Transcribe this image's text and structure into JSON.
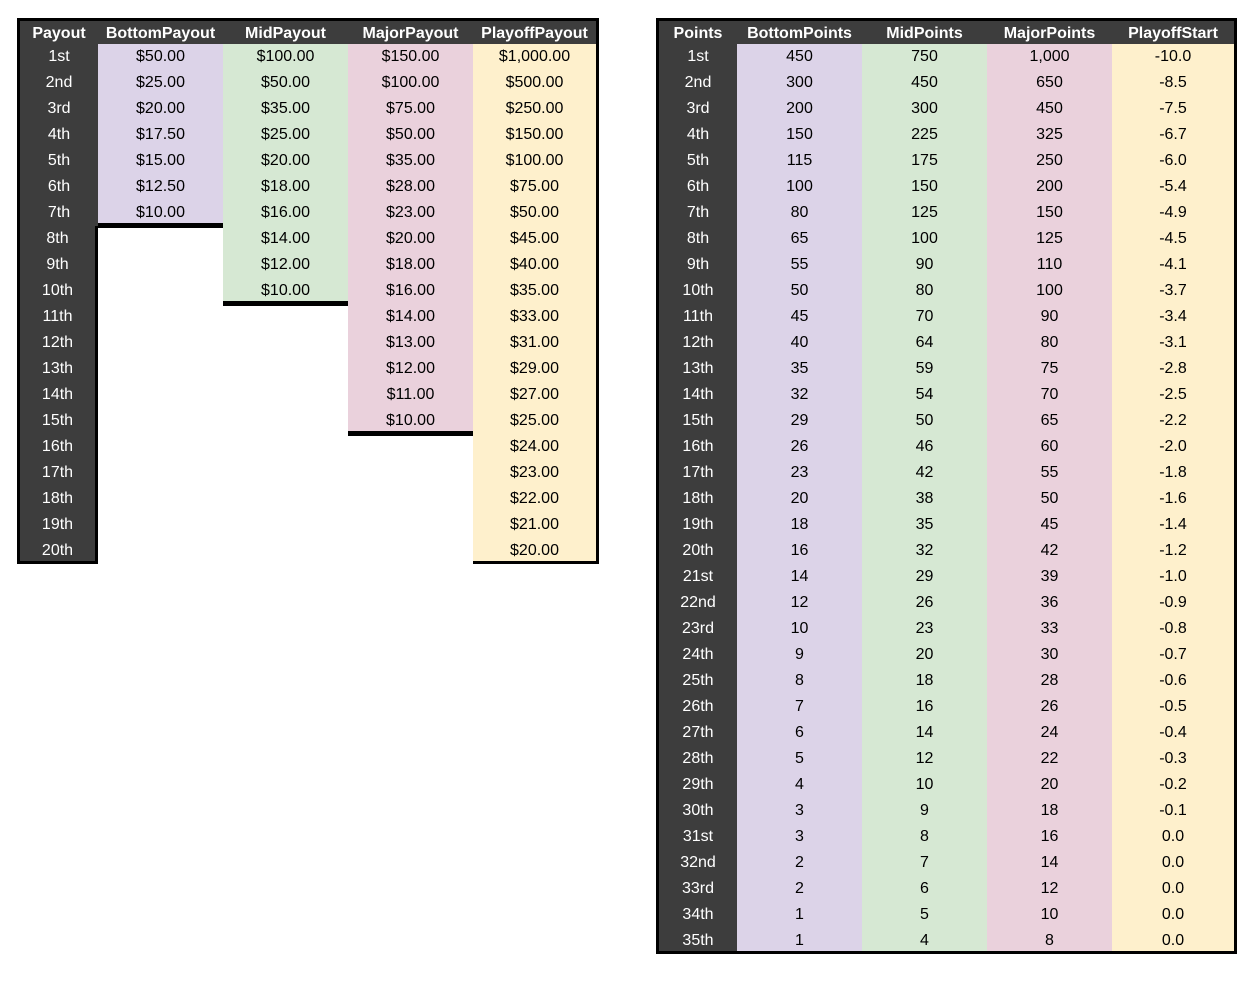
{
  "payout_table": {
    "headers": [
      "Payout",
      "BottomPayout",
      "MidPayout",
      "MajorPayout",
      "PlayoffPayout"
    ],
    "rows": [
      [
        "1st",
        "$50.00",
        "$100.00",
        "$150.00",
        "$1,000.00"
      ],
      [
        "2nd",
        "$25.00",
        "$50.00",
        "$100.00",
        "$500.00"
      ],
      [
        "3rd",
        "$20.00",
        "$35.00",
        "$75.00",
        "$250.00"
      ],
      [
        "4th",
        "$17.50",
        "$25.00",
        "$50.00",
        "$150.00"
      ],
      [
        "5th",
        "$15.00",
        "$20.00",
        "$35.00",
        "$100.00"
      ],
      [
        "6th",
        "$12.50",
        "$18.00",
        "$28.00",
        "$75.00"
      ],
      [
        "7th",
        "$10.00",
        "$16.00",
        "$23.00",
        "$50.00"
      ],
      [
        "8th",
        "",
        "$14.00",
        "$20.00",
        "$45.00"
      ],
      [
        "9th",
        "",
        "$12.00",
        "$18.00",
        "$40.00"
      ],
      [
        "10th",
        "",
        "$10.00",
        "$16.00",
        "$35.00"
      ],
      [
        "11th",
        "",
        "",
        "$14.00",
        "$33.00"
      ],
      [
        "12th",
        "",
        "",
        "$13.00",
        "$31.00"
      ],
      [
        "13th",
        "",
        "",
        "$12.00",
        "$29.00"
      ],
      [
        "14th",
        "",
        "",
        "$11.00",
        "$27.00"
      ],
      [
        "15th",
        "",
        "",
        "$10.00",
        "$25.00"
      ],
      [
        "16th",
        "",
        "",
        "",
        "$24.00"
      ],
      [
        "17th",
        "",
        "",
        "",
        "$23.00"
      ],
      [
        "18th",
        "",
        "",
        "",
        "$22.00"
      ],
      [
        "19th",
        "",
        "",
        "",
        "$21.00"
      ],
      [
        "20th",
        "",
        "",
        "",
        "$20.00"
      ]
    ]
  },
  "points_table": {
    "headers": [
      "Points",
      "BottomPoints",
      "MidPoints",
      "MajorPoints",
      "PlayoffStart"
    ],
    "rows": [
      [
        "1st",
        "450",
        "750",
        "1,000",
        "-10.0"
      ],
      [
        "2nd",
        "300",
        "450",
        "650",
        "-8.5"
      ],
      [
        "3rd",
        "200",
        "300",
        "450",
        "-7.5"
      ],
      [
        "4th",
        "150",
        "225",
        "325",
        "-6.7"
      ],
      [
        "5th",
        "115",
        "175",
        "250",
        "-6.0"
      ],
      [
        "6th",
        "100",
        "150",
        "200",
        "-5.4"
      ],
      [
        "7th",
        "80",
        "125",
        "150",
        "-4.9"
      ],
      [
        "8th",
        "65",
        "100",
        "125",
        "-4.5"
      ],
      [
        "9th",
        "55",
        "90",
        "110",
        "-4.1"
      ],
      [
        "10th",
        "50",
        "80",
        "100",
        "-3.7"
      ],
      [
        "11th",
        "45",
        "70",
        "90",
        "-3.4"
      ],
      [
        "12th",
        "40",
        "64",
        "80",
        "-3.1"
      ],
      [
        "13th",
        "35",
        "59",
        "75",
        "-2.8"
      ],
      [
        "14th",
        "32",
        "54",
        "70",
        "-2.5"
      ],
      [
        "15th",
        "29",
        "50",
        "65",
        "-2.2"
      ],
      [
        "16th",
        "26",
        "46",
        "60",
        "-2.0"
      ],
      [
        "17th",
        "23",
        "42",
        "55",
        "-1.8"
      ],
      [
        "18th",
        "20",
        "38",
        "50",
        "-1.6"
      ],
      [
        "19th",
        "18",
        "35",
        "45",
        "-1.4"
      ],
      [
        "20th",
        "16",
        "32",
        "42",
        "-1.2"
      ],
      [
        "21st",
        "14",
        "29",
        "39",
        "-1.0"
      ],
      [
        "22nd",
        "12",
        "26",
        "36",
        "-0.9"
      ],
      [
        "23rd",
        "10",
        "23",
        "33",
        "-0.8"
      ],
      [
        "24th",
        "9",
        "20",
        "30",
        "-0.7"
      ],
      [
        "25th",
        "8",
        "18",
        "28",
        "-0.6"
      ],
      [
        "26th",
        "7",
        "16",
        "26",
        "-0.5"
      ],
      [
        "27th",
        "6",
        "14",
        "24",
        "-0.4"
      ],
      [
        "28th",
        "5",
        "12",
        "22",
        "-0.3"
      ],
      [
        "29th",
        "4",
        "10",
        "20",
        "-0.2"
      ],
      [
        "30th",
        "3",
        "9",
        "18",
        "-0.1"
      ],
      [
        "31st",
        "3",
        "8",
        "16",
        "0.0"
      ],
      [
        "32nd",
        "2",
        "7",
        "14",
        "0.0"
      ],
      [
        "33rd",
        "2",
        "6",
        "12",
        "0.0"
      ],
      [
        "34th",
        "1",
        "5",
        "10",
        "0.0"
      ],
      [
        "35th",
        "1",
        "4",
        "8",
        "0.0"
      ]
    ]
  },
  "colors": {
    "header_bg": "#3d3d3d",
    "bottom": "#dcd3e8",
    "mid": "#d6e8d3",
    "major": "#ead1dc",
    "playoff": "#fef0cc"
  }
}
